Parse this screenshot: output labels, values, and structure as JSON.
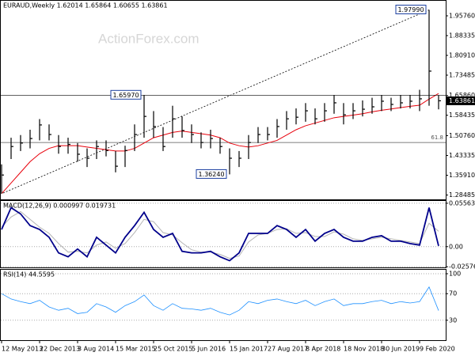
{
  "chart_data": [
    {
      "type": "ohlc",
      "title": "EURAUD,Weekly  1.62014 1.65864 1.60655 1.63861",
      "watermark": "ActionForex.com",
      "color": "#000000",
      "high": [
        1.4,
        1.5,
        1.51,
        1.53,
        1.57,
        1.55,
        1.51,
        1.5,
        1.48,
        1.46,
        1.49,
        1.49,
        1.45,
        1.47,
        1.55,
        1.6597,
        1.6,
        1.54,
        1.62,
        1.58,
        1.55,
        1.52,
        1.53,
        1.5,
        1.46,
        1.45,
        1.51,
        1.54,
        1.54,
        1.57,
        1.6,
        1.61,
        1.63,
        1.61,
        1.63,
        1.66,
        1.63,
        1.63,
        1.64,
        1.65,
        1.66,
        1.65,
        1.66,
        1.66,
        1.68,
        1.9799,
        1.65864
      ],
      "low": [
        1.29,
        1.42,
        1.45,
        1.46,
        1.49,
        1.49,
        1.44,
        1.44,
        1.41,
        1.39,
        1.42,
        1.43,
        1.37,
        1.39,
        1.45,
        1.5,
        1.5,
        1.45,
        1.5,
        1.5,
        1.48,
        1.46,
        1.46,
        1.44,
        1.3624,
        1.39,
        1.42,
        1.48,
        1.49,
        1.5,
        1.53,
        1.55,
        1.56,
        1.55,
        1.56,
        1.59,
        1.55,
        1.57,
        1.58,
        1.59,
        1.6,
        1.6,
        1.61,
        1.61,
        1.6,
        1.62,
        1.60655
      ],
      "close": [
        1.36,
        1.467,
        1.48,
        1.497,
        1.548,
        1.512,
        1.467,
        1.475,
        1.438,
        1.423,
        1.467,
        1.452,
        1.393,
        1.452,
        1.512,
        1.58,
        1.542,
        1.467,
        1.571,
        1.527,
        1.512,
        1.482,
        1.497,
        1.467,
        1.423,
        1.423,
        1.482,
        1.512,
        1.512,
        1.542,
        1.571,
        1.577,
        1.601,
        1.571,
        1.601,
        1.631,
        1.586,
        1.601,
        1.607,
        1.616,
        1.637,
        1.625,
        1.631,
        1.637,
        1.646,
        1.75,
        1.63861
      ],
      "ma": {
        "color": "#e8000b",
        "values": [
          1.29,
          1.33,
          1.37,
          1.41,
          1.44,
          1.46,
          1.47,
          1.47,
          1.47,
          1.465,
          1.46,
          1.455,
          1.45,
          1.45,
          1.46,
          1.48,
          1.5,
          1.51,
          1.52,
          1.525,
          1.52,
          1.515,
          1.51,
          1.5,
          1.48,
          1.47,
          1.465,
          1.47,
          1.48,
          1.49,
          1.51,
          1.53,
          1.545,
          1.555,
          1.565,
          1.575,
          1.58,
          1.585,
          1.59,
          1.597,
          1.603,
          1.608,
          1.613,
          1.618,
          1.622,
          1.645,
          1.666
        ]
      },
      "annotations": [
        {
          "label": "1.65970",
          "value": 1.6597
        },
        {
          "label": "1.36240",
          "value": 1.3624
        },
        {
          "label": "1.97990",
          "value": 1.9799
        }
      ],
      "fib_line": {
        "label": "61.8",
        "value": 1.482
      },
      "ylim": [
        1.2686,
        2.017
      ],
      "yticks": [
        {
          "value": 1.9576,
          "label": "1.95760"
        },
        1.88335,
        {
          "value": 1.8091,
          "label": "1.80910"
        },
        1.73485,
        {
          "value": 1.6586,
          "label": "1.65860"
        },
        1.58435,
        {
          "value": 1.5076,
          "label": "1.50760"
        },
        1.43335,
        {
          "value": 1.3591,
          "label": "1.35910"
        },
        1.28485
      ]
    },
    {
      "type": "macd",
      "title": "MACD(12,26,9) 0.000997 0.019731",
      "series": [
        {
          "color": "#00008b",
          "values": [
            0.022,
            0.05,
            0.042,
            0.027,
            0.022,
            0.012,
            -0.008,
            -0.013,
            -0.003,
            -0.013,
            0.012,
            0.002,
            -0.008,
            0.012,
            0.027,
            0.044,
            0.022,
            0.012,
            0.017,
            -0.006,
            -0.008,
            -0.008,
            -0.006,
            -0.013,
            -0.018,
            -0.008,
            0.017,
            0.017,
            0.017,
            0.027,
            0.022,
            0.012,
            0.022,
            0.007,
            0.017,
            0.022,
            0.012,
            0.007,
            0.007,
            0.012,
            0.014,
            0.007,
            0.007,
            0.004,
            0.002,
            0.05,
            0.000997
          ]
        },
        {
          "color": "#b4b4b4",
          "values": [
            0.025,
            0.038,
            0.045,
            0.035,
            0.025,
            0.017,
            0.004,
            -0.007,
            -0.006,
            -0.008,
            0.002,
            0.006,
            -0.002,
            0.004,
            0.018,
            0.035,
            0.032,
            0.018,
            0.015,
            0.005,
            -0.004,
            -0.007,
            -0.007,
            -0.01,
            -0.015,
            -0.012,
            0.006,
            0.015,
            0.017,
            0.022,
            0.023,
            0.017,
            0.018,
            0.013,
            0.013,
            0.019,
            0.016,
            0.01,
            0.008,
            0.01,
            0.012,
            0.01,
            0.008,
            0.006,
            0.004,
            0.03,
            0.019731
          ]
        }
      ],
      "ylim": [
        -0.0266,
        0.0586
      ],
      "yticks": [
        0.055637,
        {
          "value": 0,
          "label": "0.00"
        },
        -0.02576
      ]
    },
    {
      "type": "rsi",
      "title": "RSI(14) 44.5595",
      "color": "#1e90ff",
      "values": [
        70,
        62,
        58,
        55,
        60,
        50,
        45,
        48,
        40,
        42,
        55,
        50,
        42,
        52,
        58,
        68,
        52,
        45,
        55,
        48,
        47,
        45,
        48,
        42,
        38,
        45,
        58,
        55,
        60,
        62,
        58,
        55,
        60,
        52,
        58,
        62,
        52,
        55,
        55,
        58,
        60,
        55,
        58,
        56,
        58,
        80,
        44.5595
      ],
      "ylim": [
        0,
        100
      ],
      "yticks": [
        100,
        70,
        30
      ],
      "categories": [
        "12 May 2013",
        null,
        null,
        null,
        "22 Dec 2013",
        null,
        null,
        null,
        "3 Aug 2014",
        null,
        null,
        null,
        "15 Mar 2015",
        null,
        null,
        null,
        "25 Oct 2015",
        null,
        null,
        null,
        "5 Jun 2016",
        null,
        null,
        null,
        "15 Jan 2017",
        null,
        null,
        null,
        "27 Aug 2017",
        null,
        null,
        null,
        "8 Apr 2018",
        null,
        null,
        null,
        "18 Nov 2018",
        null,
        null,
        null,
        "30 Jun 2019",
        null,
        null,
        null,
        "9 Feb 2020",
        null,
        null
      ]
    }
  ]
}
